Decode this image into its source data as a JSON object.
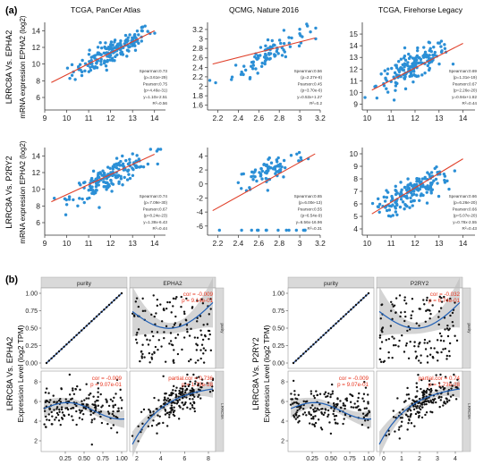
{
  "panel_labels": {
    "a": "(a)",
    "b": "(b)"
  },
  "row_labels": {
    "a_row1": "LRRC8A Vs. EPHA2",
    "a_row2": "LRRC8A Vs. P2RY2",
    "b_left": "LRRC8A Vs. EPHA2",
    "b_right": "LRRC8A Vs. P2RY2"
  },
  "y_axis_labels": {
    "a_row1": "mRNA expression EPHA2 (log2)",
    "a_row2": "mRNA expression EPHA2 (log2)",
    "b_left": "Expression Level (log2 TPM)",
    "b_right": "Expression Level (log2 TPM)"
  },
  "chart_data": [
    {
      "type": "scatter",
      "id": "a1",
      "title": "TCGA, PanCer Atlas",
      "xlim": [
        9,
        14.5
      ],
      "ylim": [
        4.5,
        15
      ],
      "x_ticks": [
        9,
        10,
        11,
        12,
        13,
        14
      ],
      "y_ticks": [
        6,
        8,
        10,
        12,
        14
      ],
      "x_center": 12.1,
      "x_spread": 0.9,
      "slope": 1.35,
      "intercept": -4.8,
      "noise": 1.2,
      "n": 170,
      "fit": {
        "x": [
          9.3,
          14
        ],
        "y": [
          7.8,
          14.0
        ]
      },
      "stats": [
        "Spearman:0.73",
        "(p=3.61e-29)",
        "Pearson:0.75",
        "(p=4.46e-31)",
        "y=1.10x-2.51",
        "R²=0.56"
      ]
    },
    {
      "type": "scatter",
      "id": "a2",
      "title": "QCMG, Nature 2016",
      "xlim": [
        2.1,
        3.2
      ],
      "ylim": [
        1.5,
        3.35
      ],
      "x_ticks": [
        2.2,
        2.4,
        2.6,
        2.8,
        3,
        3.2
      ],
      "y_ticks": [
        1.6,
        1.8,
        2,
        2.2,
        2.4,
        2.6,
        2.8,
        3,
        3.2
      ],
      "x_center": 2.7,
      "x_spread": 0.18,
      "slope": 1.25,
      "intercept": -0.68,
      "noise": 0.22,
      "n": 90,
      "fit": {
        "x": [
          2.15,
          3.15
        ],
        "y": [
          2.47,
          3.02
        ]
      },
      "stats": [
        "Spearman:0.56",
        "(p=2.27e-8)",
        "Pearson:0.45",
        "(p=3.70e-6)",
        "y=0.53x+1.27",
        "R²=0.2"
      ]
    },
    {
      "type": "scatter",
      "id": "a3",
      "title": "TCGA, Firehorse Legacy",
      "xlim": [
        9.8,
        14.5
      ],
      "ylim": [
        8.5,
        16
      ],
      "x_ticks": [
        10,
        11,
        12,
        13,
        14
      ],
      "y_ticks": [
        9,
        10,
        11,
        12,
        13,
        14,
        15
      ],
      "x_center": 11.9,
      "x_spread": 0.75,
      "slope": 1.05,
      "intercept": -0.3,
      "noise": 1.0,
      "n": 170,
      "fit": {
        "x": [
          10.2,
          14
        ],
        "y": [
          10.2,
          14.2
        ]
      },
      "stats": [
        "Spearman:0.69",
        "(p=1.31e-19)",
        "Pearson:0.67",
        "(p=2.26e-20)",
        "y=0.94x+1.82",
        "R²=0.44"
      ]
    },
    {
      "type": "scatter",
      "id": "a4",
      "xlim": [
        9,
        14.5
      ],
      "ylim": [
        4.5,
        15
      ],
      "x_ticks": [
        9,
        10,
        11,
        12,
        13,
        14
      ],
      "y_ticks": [
        6,
        8,
        10,
        12,
        14
      ],
      "x_center": 12.0,
      "x_spread": 0.9,
      "slope": 1.3,
      "intercept": -4.1,
      "noise": 1.25,
      "n": 170,
      "fit": {
        "x": [
          9.3,
          14
        ],
        "y": [
          8.5,
          14.2
        ]
      },
      "stats": [
        "Spearman:0.74",
        "(p=7.09e-30)",
        "Pearson:0.67",
        "(p=8.24e-23)",
        "y=1.39x-6.43",
        "R²=0.44"
      ]
    },
    {
      "type": "scatter",
      "id": "a5",
      "xlim": [
        2.1,
        3.2
      ],
      "ylim": [
        -7.3,
        5.2
      ],
      "x_ticks": [
        2.2,
        2.4,
        2.6,
        2.8,
        3,
        3.2
      ],
      "y_ticks": [
        -6,
        -4,
        -2,
        0,
        2,
        4
      ],
      "x_center": 2.72,
      "x_spread": 0.17,
      "slope": 6.0,
      "intercept": -14.3,
      "noise": 1.6,
      "n": 80,
      "outliers": {
        "y": -6.6,
        "n": 14
      },
      "fit": {
        "x": [
          2.15,
          3.15
        ],
        "y": [
          -3.8,
          4.3
        ]
      },
      "stats": [
        "Spearman:0.65",
        "(p=6.00e-13)",
        "Pearson:0.55",
        "(p=6.54e-9)",
        "y=6.56x-16.96",
        "R²=0.31"
      ]
    },
    {
      "type": "scatter",
      "id": "a6",
      "xlim": [
        9.8,
        14.5
      ],
      "ylim": [
        3.5,
        10.5
      ],
      "x_ticks": [
        10,
        11,
        12,
        13,
        14
      ],
      "y_ticks": [
        4,
        5,
        6,
        7,
        8,
        9,
        10
      ],
      "x_center": 11.9,
      "x_spread": 0.75,
      "slope": 0.95,
      "intercept": -4.4,
      "noise": 0.9,
      "n": 170,
      "fit": {
        "x": [
          10.2,
          14
        ],
        "y": [
          5.2,
          9.6
        ]
      },
      "stats": [
        "Spearman:0.66",
        "(p=6.26e-20)",
        "Pearson:0.66",
        "(p=5.07e-20)",
        "y=0.78x-2.55",
        "R²=0.43"
      ]
    },
    {
      "type": "scatter-matrix",
      "id": "b_left",
      "col_headers": [
        "purity",
        "EPHA2"
      ],
      "row_strips": [
        "purity",
        "LRRC8A"
      ],
      "top_left_ticks": {
        "y": [
          "0.00",
          "0.25",
          "0.50",
          "0.75",
          "1.00"
        ]
      },
      "bottom_ticks": {
        "y": [
          2,
          4,
          6,
          8
        ],
        "x_left": [
          "0.25",
          "0.50",
          "0.75",
          "1.00"
        ],
        "x_right": [
          2,
          4,
          6,
          8
        ]
      },
      "cor_upper": [
        "cor = -0.009",
        "p = 9.14e-01"
      ],
      "cor_lower": [
        "cor = -0.009",
        "p = 9.07e-01"
      ],
      "partial_cor": [
        "partial.cor = 0.736",
        "p = 1.73e-28"
      ]
    },
    {
      "type": "scatter-matrix",
      "id": "b_right",
      "col_headers": [
        "purity",
        "P2RY2"
      ],
      "row_strips": [
        "purity",
        "LRRC8A"
      ],
      "top_left_ticks": {
        "y": [
          "0.00",
          "0.25",
          "0.50",
          "0.75",
          "1.00"
        ]
      },
      "bottom_ticks": {
        "y": [
          2,
          4,
          6,
          8
        ],
        "x_left": [
          "0.25",
          "0.50",
          "0.75",
          "1.00"
        ],
        "x_right": [
          0,
          1,
          2,
          3,
          4
        ]
      },
      "cor_upper": [
        "cor = -0.032",
        "p = 6.74e-01"
      ],
      "cor_lower": [
        "cor = -0.009",
        "p = 9.07e-01"
      ],
      "partial_cor": [
        "partial.cor = 0.74",
        "p = 1.73e-28"
      ]
    }
  ],
  "colors": {
    "point_a": "#2b8fd6",
    "fit_a": "#e0402a",
    "point_b": "#111111",
    "smooth_b": "#1f5fb5",
    "band_b": "#bdbdbd",
    "diag_b": "#2a5cb0",
    "strip_b": "#d9d9d9",
    "cor_text": "#e8351f"
  }
}
